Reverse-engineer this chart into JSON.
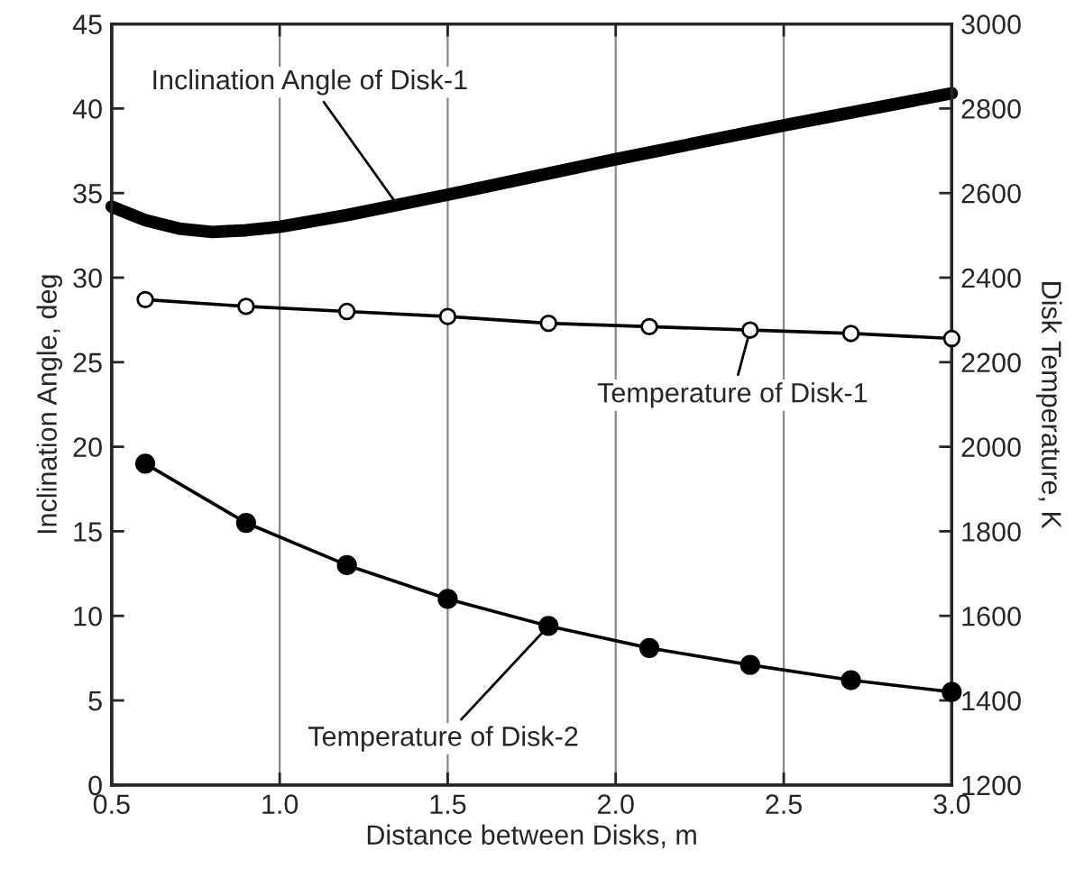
{
  "chart_data": {
    "type": "line",
    "xlabel": "Distance between Disks, m",
    "ylabel": "Inclination Angle, deg",
    "y2label": "Disk Temperature, K",
    "xlim": [
      0.5,
      3.0
    ],
    "xticks": [
      {
        "value": 0.5,
        "label": "0.5"
      },
      {
        "value": 1.0,
        "label": "1.0"
      },
      {
        "value": 1.5,
        "label": "1.5"
      },
      {
        "value": 2.0,
        "label": "2.0"
      },
      {
        "value": 2.5,
        "label": "2.5"
      },
      {
        "value": 3.0,
        "label": "3.0"
      }
    ],
    "ylim": [
      0,
      45
    ],
    "yticks": [
      0,
      5,
      10,
      15,
      20,
      25,
      30,
      35,
      40,
      45
    ],
    "y2lim": [
      1200,
      3000
    ],
    "y2ticks": [
      1200,
      1400,
      1600,
      1800,
      2000,
      2200,
      2400,
      2600,
      2800,
      3000
    ],
    "grid": "x",
    "series": [
      {
        "color": "#000000",
        "marker": "none",
        "x": [
          0.5,
          0.6,
          0.7,
          0.8,
          0.9,
          1.0,
          1.2,
          1.5,
          2.0,
          2.5,
          3.0
        ],
        "values": [
          34.2,
          33.4,
          32.9,
          32.7,
          32.8,
          33.0,
          33.7,
          34.9,
          37.0,
          39.0,
          40.9
        ]
      },
      {
        "color": "#000000",
        "marker": "circle",
        "axis": "y2",
        "x": [
          0.6,
          0.9,
          1.2,
          1.5,
          1.8,
          2.1,
          2.4,
          2.7,
          3.0
        ],
        "values": [
          2348,
          2332,
          2320,
          2308,
          2292,
          2284,
          2276,
          2268,
          2256
        ]
      },
      {
        "color": "#000000",
        "marker": "circle",
        "axis": "y2",
        "x": [
          0.6,
          0.9,
          1.2,
          1.5,
          1.8,
          2.1,
          2.4,
          2.7,
          3.0
        ],
        "values": [
          1960,
          1820,
          1720,
          1640,
          1576,
          1524,
          1484,
          1448,
          1420
        ]
      }
    ],
    "annotations": [
      {
        "text": "Inclination Angle of Disk-1",
        "x": 1.35,
        "y": 34.3
      },
      {
        "text": "Temperature of Disk-1",
        "x": 2.4,
        "y": 26.9
      },
      {
        "text": "Temperature of Disk-2",
        "x": 1.8,
        "y": 9.4
      }
    ]
  }
}
